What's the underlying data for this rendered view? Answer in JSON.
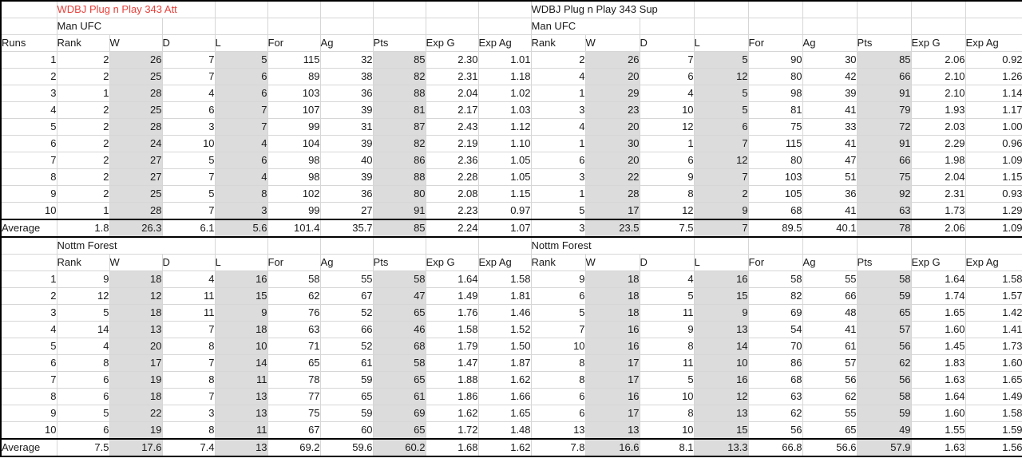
{
  "accent": {
    "title_red": "#e8403a",
    "column_shade": "#dcdcdc",
    "gridline": "#d6d6d6"
  },
  "runs": {
    "header": "Runs",
    "values": [
      "1",
      "2",
      "3",
      "4",
      "5",
      "6",
      "7",
      "8",
      "9",
      "10"
    ],
    "average": "Average"
  },
  "tables": {
    "att_mu": {
      "title": "WDBJ Plug n Play 343 Att",
      "team": "Man UFC",
      "cols": [
        "Rank",
        "W",
        "D",
        "L",
        "For",
        "Ag",
        "Pts",
        "Exp G",
        "Exp Ag"
      ],
      "rows": [
        [
          "2",
          "26",
          "7",
          "5",
          "115",
          "32",
          "85",
          "2.30",
          "1.01"
        ],
        [
          "2",
          "25",
          "7",
          "6",
          "89",
          "38",
          "82",
          "2.31",
          "1.18"
        ],
        [
          "1",
          "28",
          "4",
          "6",
          "103",
          "36",
          "88",
          "2.04",
          "1.02"
        ],
        [
          "2",
          "25",
          "6",
          "7",
          "107",
          "39",
          "81",
          "2.17",
          "1.03"
        ],
        [
          "2",
          "28",
          "3",
          "7",
          "99",
          "31",
          "87",
          "2.43",
          "1.12"
        ],
        [
          "2",
          "24",
          "10",
          "4",
          "104",
          "39",
          "82",
          "2.19",
          "1.10"
        ],
        [
          "2",
          "27",
          "5",
          "6",
          "98",
          "40",
          "86",
          "2.36",
          "1.05"
        ],
        [
          "2",
          "27",
          "7",
          "4",
          "98",
          "39",
          "88",
          "2.28",
          "1.05"
        ],
        [
          "2",
          "25",
          "5",
          "8",
          "102",
          "36",
          "80",
          "2.08",
          "1.15"
        ],
        [
          "1",
          "28",
          "7",
          "3",
          "99",
          "27",
          "91",
          "2.23",
          "0.97"
        ]
      ],
      "avg": [
        "1.8",
        "26.3",
        "6.1",
        "5.6",
        "101.4",
        "35.7",
        "85",
        "2.24",
        "1.07"
      ]
    },
    "sup_mu": {
      "title": "WDBJ Plug n Play 343 Sup",
      "team": "Man UFC",
      "cols": [
        "Rank",
        "W",
        "D",
        "L",
        "For",
        "Ag",
        "Pts",
        "Exp G",
        "Exp Ag"
      ],
      "rows": [
        [
          "2",
          "26",
          "7",
          "5",
          "90",
          "30",
          "85",
          "2.06",
          "0.92"
        ],
        [
          "4",
          "20",
          "6",
          "12",
          "80",
          "42",
          "66",
          "2.10",
          "1.26"
        ],
        [
          "1",
          "29",
          "4",
          "5",
          "98",
          "39",
          "91",
          "2.10",
          "1.14"
        ],
        [
          "3",
          "23",
          "10",
          "5",
          "81",
          "41",
          "79",
          "1.93",
          "1.17"
        ],
        [
          "4",
          "20",
          "12",
          "6",
          "75",
          "33",
          "72",
          "2.03",
          "1.00"
        ],
        [
          "1",
          "30",
          "1",
          "7",
          "115",
          "41",
          "91",
          "2.29",
          "0.96"
        ],
        [
          "6",
          "20",
          "6",
          "12",
          "80",
          "47",
          "66",
          "1.98",
          "1.09"
        ],
        [
          "3",
          "22",
          "9",
          "7",
          "103",
          "51",
          "75",
          "2.04",
          "1.15"
        ],
        [
          "1",
          "28",
          "8",
          "2",
          "105",
          "36",
          "92",
          "2.31",
          "0.93"
        ],
        [
          "5",
          "17",
          "12",
          "9",
          "68",
          "41",
          "63",
          "1.73",
          "1.29"
        ]
      ],
      "avg": [
        "3",
        "23.5",
        "7.5",
        "7",
        "89.5",
        "40.1",
        "78",
        "2.06",
        "1.09"
      ]
    },
    "att_nf": {
      "title": "Nottm Forest",
      "cols": [
        "Rank",
        "W",
        "D",
        "L",
        "For",
        "Ag",
        "Pts",
        "Exp G",
        "Exp Ag"
      ],
      "rows": [
        [
          "9",
          "18",
          "4",
          "16",
          "58",
          "55",
          "58",
          "1.64",
          "1.58"
        ],
        [
          "12",
          "12",
          "11",
          "15",
          "62",
          "67",
          "47",
          "1.49",
          "1.81"
        ],
        [
          "5",
          "18",
          "11",
          "9",
          "76",
          "52",
          "65",
          "1.76",
          "1.46"
        ],
        [
          "14",
          "13",
          "7",
          "18",
          "63",
          "66",
          "46",
          "1.58",
          "1.52"
        ],
        [
          "4",
          "20",
          "8",
          "10",
          "71",
          "52",
          "68",
          "1.79",
          "1.50"
        ],
        [
          "8",
          "17",
          "7",
          "14",
          "65",
          "61",
          "58",
          "1.47",
          "1.87"
        ],
        [
          "6",
          "19",
          "8",
          "11",
          "78",
          "59",
          "65",
          "1.88",
          "1.62"
        ],
        [
          "6",
          "18",
          "7",
          "13",
          "77",
          "65",
          "61",
          "1.86",
          "1.66"
        ],
        [
          "5",
          "22",
          "3",
          "13",
          "75",
          "59",
          "69",
          "1.62",
          "1.65"
        ],
        [
          "6",
          "19",
          "8",
          "11",
          "67",
          "60",
          "65",
          "1.72",
          "1.48"
        ]
      ],
      "avg": [
        "7.5",
        "17.6",
        "7.4",
        "13",
        "69.2",
        "59.6",
        "60.2",
        "1.68",
        "1.62"
      ]
    },
    "sup_nf": {
      "title": "Nottm Forest",
      "cols": [
        "Rank",
        "W",
        "D",
        "L",
        "For",
        "Ag",
        "Pts",
        "Exp G",
        "Exp Ag"
      ],
      "rows": [
        [
          "9",
          "18",
          "4",
          "16",
          "58",
          "55",
          "58",
          "1.64",
          "1.58"
        ],
        [
          "6",
          "18",
          "5",
          "15",
          "82",
          "66",
          "59",
          "1.74",
          "1.57"
        ],
        [
          "5",
          "18",
          "11",
          "9",
          "69",
          "48",
          "65",
          "1.65",
          "1.42"
        ],
        [
          "7",
          "16",
          "9",
          "13",
          "54",
          "41",
          "57",
          "1.60",
          "1.41"
        ],
        [
          "10",
          "16",
          "8",
          "14",
          "70",
          "61",
          "56",
          "1.45",
          "1.73"
        ],
        [
          "8",
          "17",
          "11",
          "10",
          "86",
          "57",
          "62",
          "1.83",
          "1.60"
        ],
        [
          "8",
          "17",
          "5",
          "16",
          "68",
          "56",
          "56",
          "1.63",
          "1.65"
        ],
        [
          "6",
          "16",
          "10",
          "12",
          "63",
          "62",
          "58",
          "1.64",
          "1.49"
        ],
        [
          "6",
          "17",
          "8",
          "13",
          "62",
          "55",
          "59",
          "1.60",
          "1.58"
        ],
        [
          "13",
          "13",
          "10",
          "15",
          "56",
          "65",
          "49",
          "1.55",
          "1.59"
        ]
      ],
      "avg": [
        "7.8",
        "16.6",
        "8.1",
        "13.3",
        "66.8",
        "56.6",
        "57.9",
        "1.63",
        "1.56"
      ]
    }
  }
}
